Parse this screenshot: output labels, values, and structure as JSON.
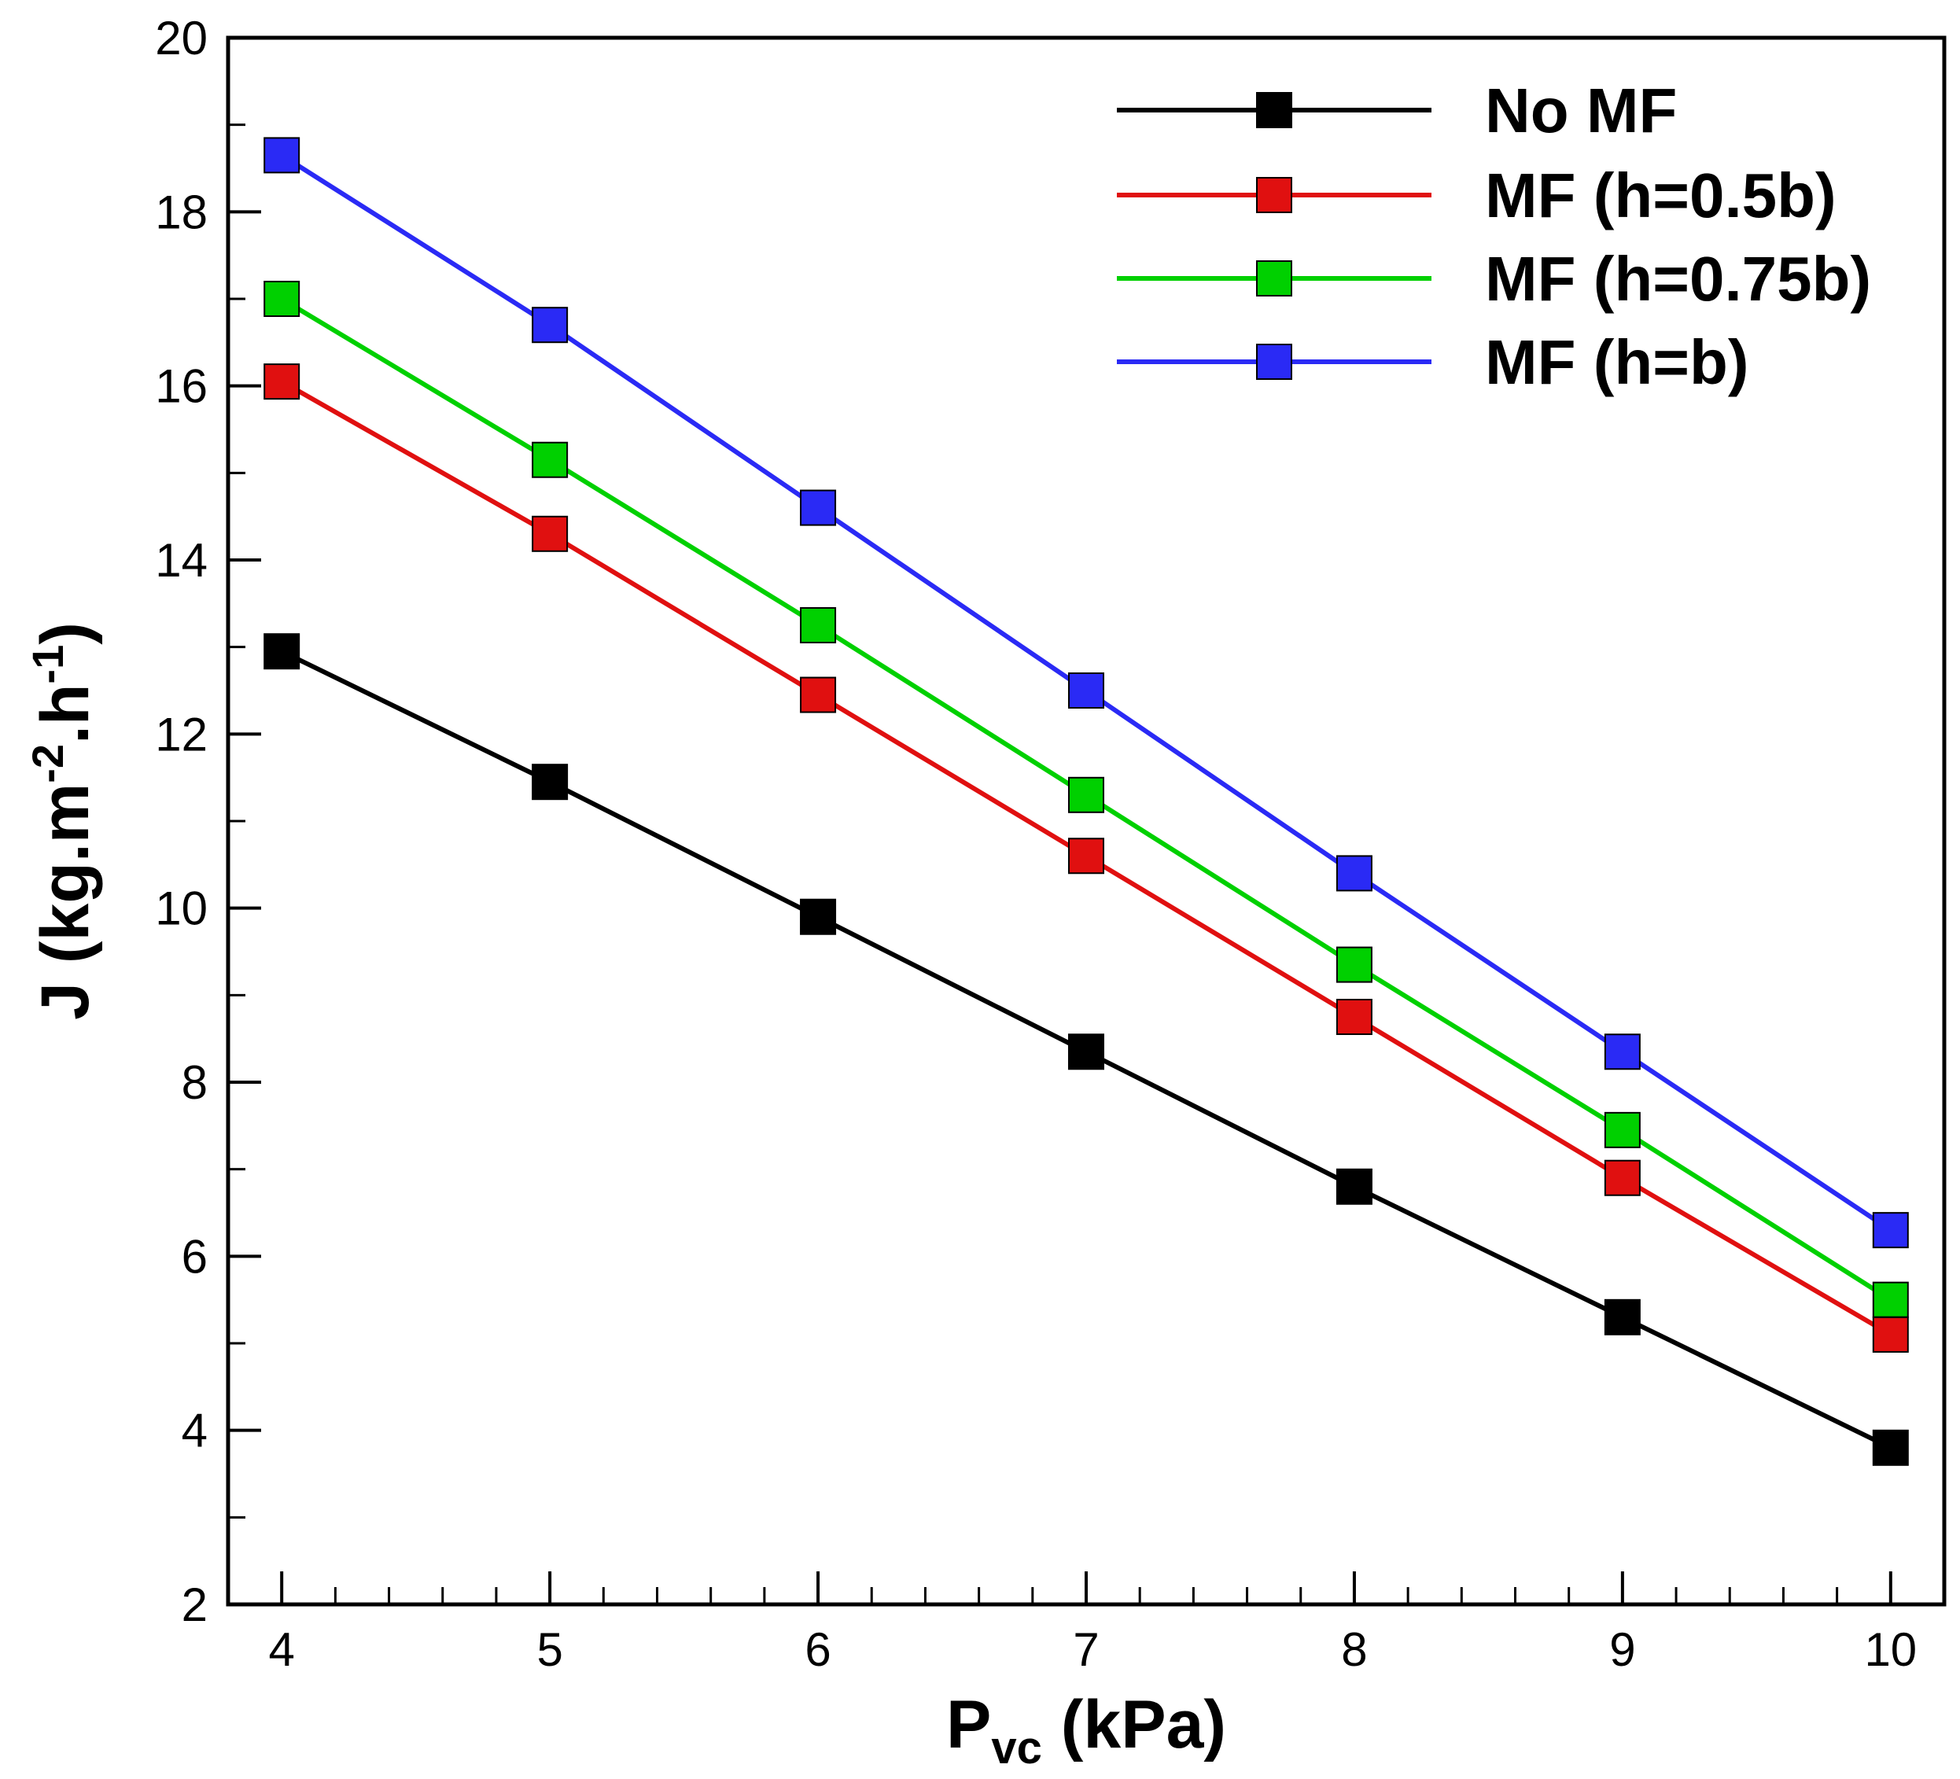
{
  "chart_data": {
    "type": "line",
    "x": [
      4,
      5,
      6,
      7,
      8,
      9,
      10
    ],
    "xlim": [
      3.8,
      10.2
    ],
    "ylim": [
      2,
      20
    ],
    "xticks": [
      4,
      5,
      6,
      7,
      8,
      9,
      10
    ],
    "yticks": [
      2,
      4,
      6,
      8,
      10,
      12,
      14,
      16,
      18,
      20
    ],
    "xlabel": {
      "main": "P",
      "sub": "vc",
      "rest": " (kPa)"
    },
    "ylabel": {
      "prefix": "J (kg.m",
      "sup1": "-2",
      "mid": ".h",
      "sup2": "-1",
      "suffix": ")"
    },
    "grid": false,
    "legend_position": "top-right",
    "series": [
      {
        "name": "No MF",
        "color": "#000000",
        "values": [
          12.95,
          11.45,
          9.9,
          8.35,
          6.8,
          5.3,
          3.8
        ]
      },
      {
        "name": "MF (h=0.5b)",
        "color": "#e01010",
        "values": [
          16.05,
          14.3,
          12.45,
          10.6,
          8.75,
          6.9,
          5.1
        ]
      },
      {
        "name": "MF (h=0.75b)",
        "color": "#00d000",
        "values": [
          17.0,
          15.15,
          13.25,
          11.3,
          9.35,
          7.45,
          5.5
        ]
      },
      {
        "name": "MF (h=b)",
        "color": "#2a2af5",
        "values": [
          18.65,
          16.7,
          14.6,
          12.5,
          10.4,
          8.35,
          6.3
        ]
      }
    ]
  }
}
